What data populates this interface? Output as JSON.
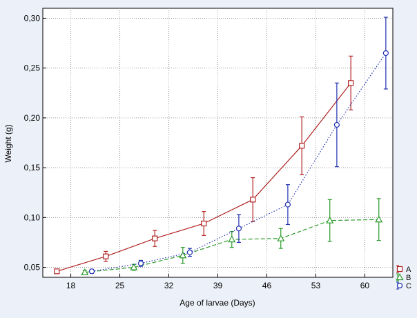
{
  "chart_data": {
    "type": "line",
    "xlabel": "Age of larvae (Days)",
    "ylabel": "Weight (g)",
    "x_ticks": [
      "18",
      "25",
      "32",
      "39",
      "46",
      "53",
      "60"
    ],
    "y_ticks": [
      "0,05",
      "0,10",
      "0,15",
      "0,20",
      "0,25",
      "0,30"
    ],
    "xlim": [
      14,
      64
    ],
    "ylim": [
      0.04,
      0.31
    ],
    "grid": true,
    "legend_position": "bottom-right outside",
    "series": [
      {
        "name": "A",
        "color": "#b02020",
        "marker": "square",
        "line_style": "solid",
        "x": [
          16,
          23,
          30,
          37,
          44,
          51,
          58
        ],
        "y": [
          0.046,
          0.061,
          0.079,
          0.094,
          0.118,
          0.172,
          0.235
        ],
        "err": [
          0.002,
          0.005,
          0.008,
          0.012,
          0.022,
          0.029,
          0.027
        ]
      },
      {
        "name": "B",
        "color": "#2a9a2a",
        "marker": "triangle",
        "line_style": "dashed",
        "x": [
          20,
          27,
          34,
          41,
          48,
          55,
          62
        ],
        "y": [
          0.045,
          0.05,
          0.062,
          0.078,
          0.079,
          0.097,
          0.098
        ],
        "err": [
          0.002,
          0.003,
          0.008,
          0.008,
          0.01,
          0.021,
          0.021
        ]
      },
      {
        "name": "C",
        "color": "#2030b0",
        "marker": "circle",
        "line_style": "dotted",
        "x": [
          21,
          28,
          35,
          42,
          49,
          56,
          63
        ],
        "y": [
          0.046,
          0.054,
          0.065,
          0.089,
          0.113,
          0.193,
          0.265
        ],
        "err": [
          0.002,
          0.003,
          0.004,
          0.014,
          0.02,
          0.042,
          0.036
        ]
      }
    ]
  }
}
